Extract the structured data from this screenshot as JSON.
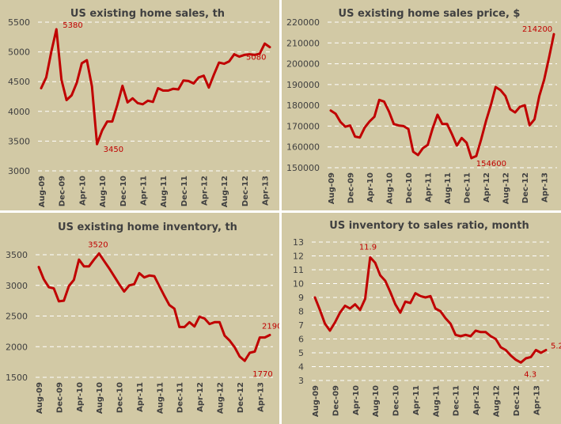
{
  "chart_data": [
    {
      "type": "line",
      "title": "US existing home sales, th",
      "xlabel": "",
      "ylabel": "",
      "ylim": [
        3000,
        5500
      ],
      "yticks": [
        3000,
        3500,
        4000,
        4500,
        5000,
        5500
      ],
      "xtick_labels": [
        "Aug-09",
        "Dec-09",
        "Apr-10",
        "Aug-10",
        "Dec-10",
        "Apr-11",
        "Aug-11",
        "Dec-11",
        "Apr-12",
        "Aug-12",
        "Dec-12",
        "Apr-13"
      ],
      "grid": true,
      "legend": "none",
      "series": [
        {
          "name": "Existing home sales",
          "color": "#c00000",
          "values": [
            4390,
            4570,
            5000,
            5380,
            4530,
            4190,
            4270,
            4480,
            4810,
            4860,
            4420,
            3450,
            3680,
            3830,
            3830,
            4110,
            4430,
            4150,
            4220,
            4140,
            4120,
            4180,
            4160,
            4390,
            4350,
            4350,
            4380,
            4370,
            4520,
            4510,
            4470,
            4570,
            4600,
            4400,
            4620,
            4820,
            4800,
            4840,
            4960,
            4920,
            4950,
            4960,
            4950,
            4970,
            5140,
            5080
          ]
        }
      ],
      "annotations": [
        {
          "label": "5380",
          "index": 3
        },
        {
          "label": "3450",
          "index": 11
        },
        {
          "label": "5080",
          "index": 45
        }
      ]
    },
    {
      "type": "line",
      "title": "US existing home sales price, $",
      "xlabel": "",
      "ylabel": "",
      "ylim": [
        150000,
        220000
      ],
      "yticks": [
        150000,
        160000,
        170000,
        180000,
        190000,
        200000,
        210000,
        220000
      ],
      "xtick_labels": [
        "Aug-09",
        "Dec-09",
        "Apr-10",
        "Aug-10",
        "Dec-10",
        "Apr-11",
        "Aug-11",
        "Dec-11",
        "Apr-12",
        "Aug-12",
        "Dec-12",
        "Apr-13"
      ],
      "grid": true,
      "legend": "none",
      "series": [
        {
          "name": "Existing home sales price",
          "color": "#c00000",
          "values": [
            177500,
            176000,
            172000,
            169700,
            170300,
            165000,
            164500,
            169300,
            172200,
            174500,
            182600,
            181800,
            177000,
            171000,
            170300,
            170000,
            168600,
            157700,
            156100,
            159400,
            161000,
            168800,
            175500,
            171000,
            171000,
            166000,
            160600,
            164300,
            162000,
            154600,
            155600,
            163500,
            172400,
            180000,
            188800,
            187300,
            184500,
            178100,
            176600,
            179300,
            180000,
            170400,
            173300,
            184500,
            192300,
            203000,
            214200
          ]
        }
      ],
      "annotations": [
        {
          "label": "154600",
          "index": 29
        },
        {
          "label": "214200",
          "index": 46
        }
      ]
    },
    {
      "type": "line",
      "title": "US existing home inventory, th",
      "xlabel": "",
      "ylabel": "",
      "ylim": [
        1500,
        3500
      ],
      "yticks": [
        1500,
        2000,
        2500,
        3000,
        3500
      ],
      "xtick_labels": [
        "Aug-09",
        "Dec-09",
        "Apr-10",
        "Aug-10",
        "Dec-10",
        "Apr-11",
        "Aug-11",
        "Dec-11",
        "Apr-12",
        "Aug-12",
        "Dec-12",
        "Apr-13"
      ],
      "grid": true,
      "legend": "none",
      "series": [
        {
          "name": "Existing home inventory",
          "color": "#c00000",
          "values": [
            3300,
            3100,
            2970,
            2950,
            2740,
            2750,
            2990,
            3090,
            3420,
            3310,
            3310,
            3420,
            3520,
            3400,
            3280,
            3150,
            3020,
            2900,
            3000,
            3020,
            3200,
            3130,
            3160,
            3150,
            2990,
            2830,
            2680,
            2620,
            2320,
            2320,
            2400,
            2330,
            2490,
            2460,
            2370,
            2400,
            2400,
            2180,
            2100,
            1990,
            1840,
            1770,
            1900,
            1920,
            2150,
            2150,
            2190
          ]
        }
      ],
      "annotations": [
        {
          "label": "3520",
          "index": 12
        },
        {
          "label": "1770",
          "index": 41
        },
        {
          "label": "2190",
          "index": 46
        }
      ]
    },
    {
      "type": "line",
      "title": "US inventory to sales ratio, month",
      "xlabel": "",
      "ylabel": "",
      "ylim": [
        3,
        13
      ],
      "yticks": [
        3,
        4,
        5,
        6,
        7,
        8,
        9,
        10,
        11,
        12,
        13
      ],
      "xtick_labels": [
        "Aug-09",
        "Dec-09",
        "Apr-10",
        "Aug-10",
        "Dec-10",
        "Apr-11",
        "Aug-11",
        "Dec-11",
        "Apr-12",
        "Aug-12",
        "Dec-12",
        "Apr-13"
      ],
      "grid": true,
      "legend": "none",
      "series": [
        {
          "name": "Inventory to sales ratio",
          "color": "#c00000",
          "values": [
            9.0,
            8.1,
            7.1,
            6.6,
            7.2,
            7.9,
            8.4,
            8.2,
            8.5,
            8.1,
            8.9,
            11.9,
            11.5,
            10.6,
            10.2,
            9.4,
            8.5,
            7.9,
            8.7,
            8.6,
            9.3,
            9.1,
            9.0,
            9.1,
            8.2,
            8.0,
            7.5,
            7.1,
            6.3,
            6.2,
            6.3,
            6.2,
            6.6,
            6.5,
            6.5,
            6.2,
            6.0,
            5.4,
            5.2,
            4.8,
            4.5,
            4.3,
            4.6,
            4.7,
            5.2,
            5.0,
            5.2
          ]
        }
      ],
      "annotations": [
        {
          "label": "11.9",
          "index": 11
        },
        {
          "label": "4.3",
          "index": 41
        },
        {
          "label": "5.2",
          "index": 46
        }
      ]
    }
  ]
}
